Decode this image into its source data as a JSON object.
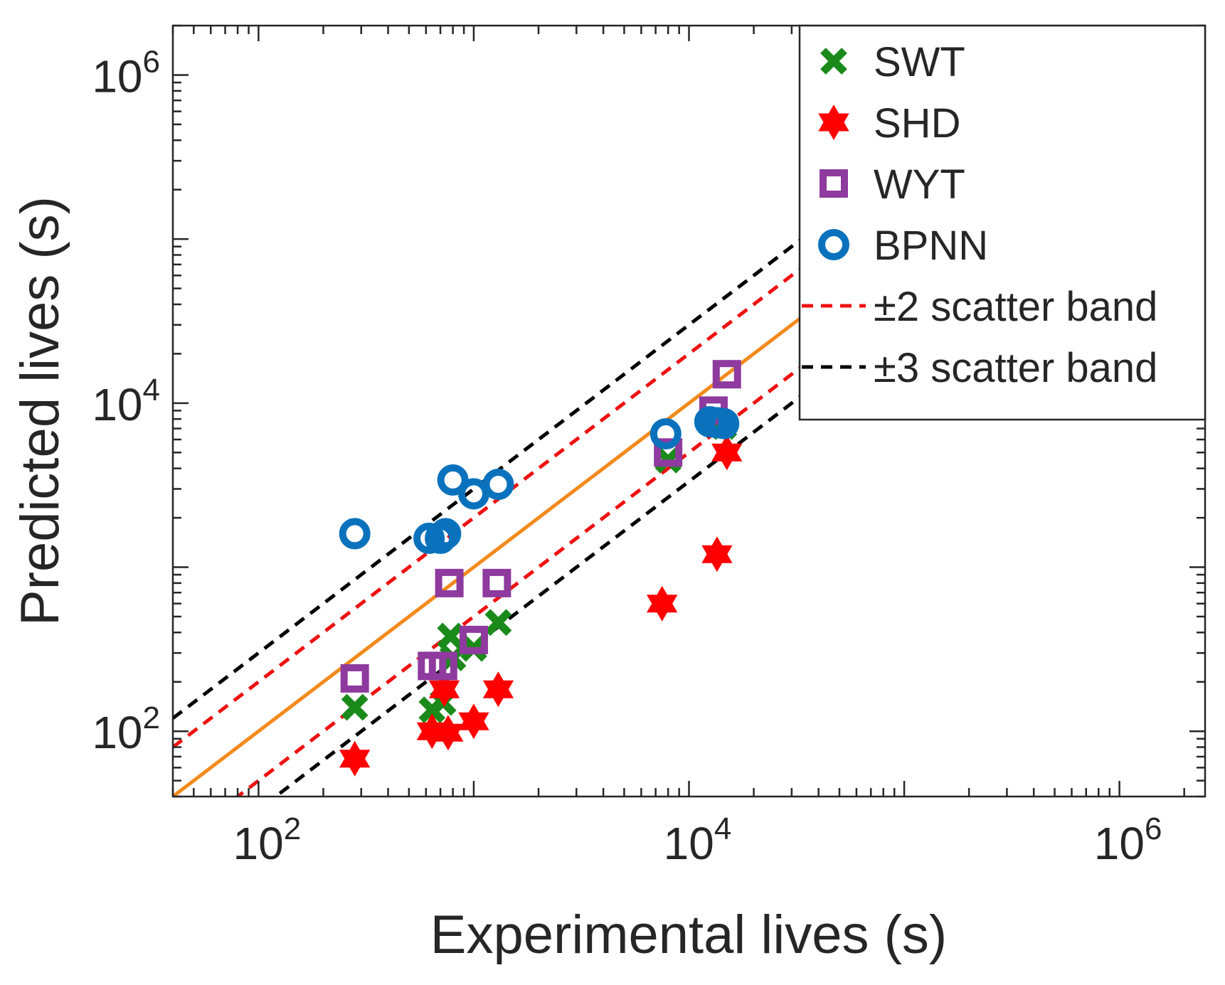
{
  "chart_data": {
    "type": "scatter",
    "title": "",
    "xlabel": "Experimental lives (s)",
    "ylabel": "Predicted lives (s)",
    "xscale": "log",
    "yscale": "log",
    "xlim": [
      40,
      2500000
    ],
    "ylim": [
      40,
      2000000
    ],
    "xticks": [
      {
        "value": 100,
        "base": "10",
        "exp": "2"
      },
      {
        "value": 10000,
        "base": "10",
        "exp": "4"
      },
      {
        "value": 1000000,
        "base": "10",
        "exp": "6"
      }
    ],
    "yticks": [
      {
        "value": 100,
        "base": "10",
        "exp": "2"
      },
      {
        "value": 10000,
        "base": "10",
        "exp": "4"
      },
      {
        "value": 1000000,
        "base": "10",
        "exp": "6"
      }
    ],
    "grid": false,
    "legend_position": "top-right",
    "colors": {
      "swt": "#1a8a1a",
      "shd": "#ff0000",
      "wyt": "#8e3a9e",
      "bpnn": "#0a72bd",
      "ideal": "#f28a1c",
      "band2": "#ee1111",
      "band3": "#000000"
    },
    "series": [
      {
        "name": "SWT",
        "marker": "x",
        "color": "#1a8a1a",
        "x": [
          280,
          640,
          720,
          800,
          780,
          1000,
          1300,
          8000,
          13000,
          14500
        ],
        "y": [
          140,
          135,
          150,
          280,
          380,
          320,
          460,
          4500,
          7800,
          7200
        ]
      },
      {
        "name": "SHD",
        "marker": "hexagram",
        "color": "#ff0000",
        "x": [
          280,
          640,
          760,
          730,
          1000,
          1300,
          7500,
          13500,
          15000
        ],
        "y": [
          68,
          100,
          98,
          180,
          115,
          180,
          600,
          1200,
          5000
        ]
      },
      {
        "name": "WYT",
        "marker": "square",
        "color": "#8e3a9e",
        "x": [
          280,
          640,
          720,
          770,
          1000,
          1280,
          8000,
          13000,
          15000
        ],
        "y": [
          210,
          250,
          250,
          800,
          360,
          800,
          5000,
          9000,
          15000
        ]
      },
      {
        "name": "BPNN",
        "marker": "circle",
        "color": "#0a72bd",
        "x": [
          280,
          620,
          700,
          740,
          800,
          1000,
          1300,
          7800,
          12500,
          13500,
          14500
        ],
        "y": [
          1600,
          1500,
          1500,
          1600,
          3400,
          2800,
          3200,
          6500,
          7700,
          7600,
          7500
        ]
      }
    ],
    "lines": [
      {
        "name": "±2 scatter band",
        "style": "dashed",
        "color": "#ee1111",
        "factors": [
          2,
          0.5
        ]
      },
      {
        "name": "±3 scatter band",
        "style": "dashed",
        "color": "#000000",
        "factors": [
          3,
          0.333
        ]
      },
      {
        "name": "",
        "style": "solid",
        "color": "#f28a1c",
        "factors": [
          1
        ]
      }
    ],
    "legend": [
      {
        "label": "SWT",
        "marker": "x",
        "color": "#1a8a1a"
      },
      {
        "label": "SHD",
        "marker": "hexagram",
        "color": "#ff0000"
      },
      {
        "label": "WYT",
        "marker": "square",
        "color": "#8e3a9e"
      },
      {
        "label": "BPNN",
        "marker": "circle",
        "color": "#0a72bd"
      },
      {
        "label": "±2 scatter band",
        "marker": "dashed",
        "color": "#ee1111"
      },
      {
        "label": "±3 scatter band",
        "marker": "dashed",
        "color": "#000000"
      }
    ]
  }
}
